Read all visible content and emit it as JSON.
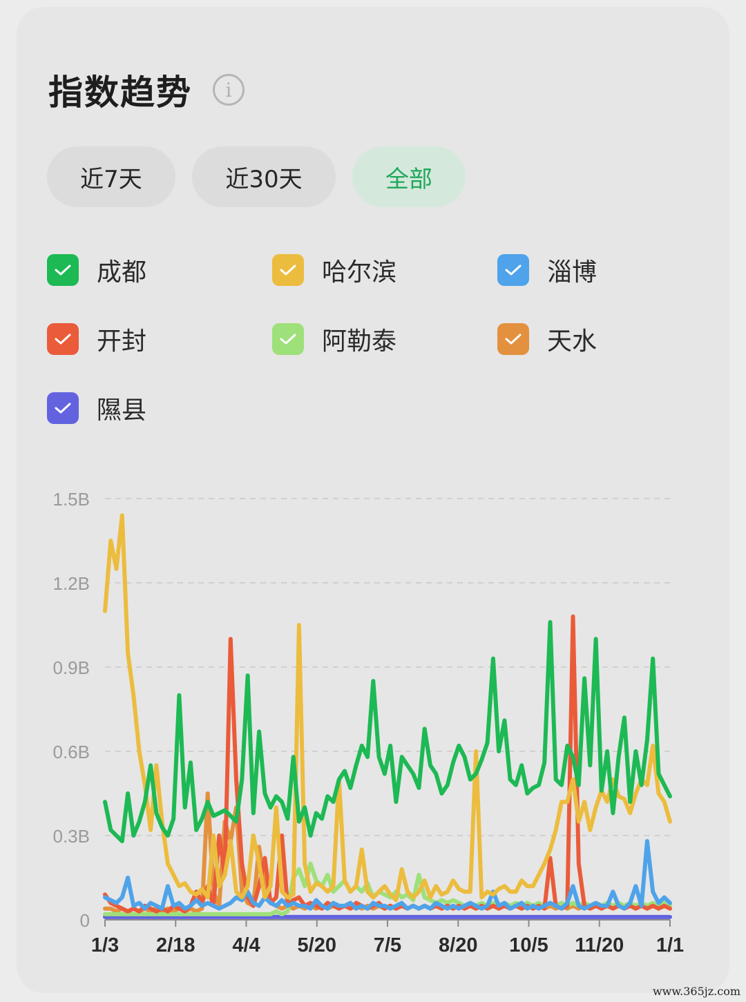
{
  "header": {
    "title": "指数趋势",
    "info_icon": "info-icon"
  },
  "range_tabs": [
    {
      "label": "近7天",
      "active": false
    },
    {
      "label": "近30天",
      "active": false
    },
    {
      "label": "全部",
      "active": true
    }
  ],
  "legend": [
    {
      "label": "成都",
      "color": "#1db954",
      "checked": true
    },
    {
      "label": "哈尔滨",
      "color": "#ecbc3e",
      "checked": true
    },
    {
      "label": "淄博",
      "color": "#4ea3ea",
      "checked": true
    },
    {
      "label": "开封",
      "color": "#ea5b3a",
      "checked": true
    },
    {
      "label": "阿勒泰",
      "color": "#9ee07a",
      "checked": true
    },
    {
      "label": "天水",
      "color": "#e3913f",
      "checked": true
    },
    {
      "label": "隰县",
      "color": "#6363e0",
      "checked": true
    }
  ],
  "chart_data": {
    "type": "line",
    "x_ticks": [
      "1/3",
      "2/18",
      "4/4",
      "5/20",
      "7/5",
      "8/20",
      "10/5",
      "11/20",
      "1/1"
    ],
    "y_ticks": [
      "0",
      "0.3B",
      "0.6B",
      "0.9B",
      "1.2B",
      "1.5B"
    ],
    "ylim": [
      0,
      1.5
    ],
    "y_unit": "B",
    "grid": true,
    "series": [
      {
        "name": "成都",
        "color": "#1db954",
        "values": [
          0.42,
          0.32,
          0.3,
          0.28,
          0.45,
          0.3,
          0.35,
          0.42,
          0.55,
          0.38,
          0.33,
          0.3,
          0.36,
          0.8,
          0.4,
          0.56,
          0.32,
          0.36,
          0.42,
          0.37,
          0.38,
          0.39,
          0.37,
          0.35,
          0.5,
          0.87,
          0.38,
          0.67,
          0.45,
          0.4,
          0.44,
          0.42,
          0.36,
          0.58,
          0.35,
          0.4,
          0.3,
          0.38,
          0.36,
          0.44,
          0.42,
          0.5,
          0.53,
          0.47,
          0.55,
          0.62,
          0.58,
          0.85,
          0.58,
          0.52,
          0.62,
          0.42,
          0.58,
          0.55,
          0.52,
          0.47,
          0.68,
          0.55,
          0.52,
          0.45,
          0.48,
          0.56,
          0.62,
          0.58,
          0.5,
          0.52,
          0.57,
          0.63,
          0.93,
          0.6,
          0.71,
          0.5,
          0.48,
          0.55,
          0.45,
          0.47,
          0.48,
          0.56,
          1.06,
          0.5,
          0.48,
          0.62,
          0.58,
          0.48,
          0.86,
          0.55,
          1.0,
          0.46,
          0.6,
          0.38,
          0.58,
          0.72,
          0.42,
          0.6,
          0.48,
          0.64,
          0.93,
          0.52,
          0.48,
          0.44
        ]
      },
      {
        "name": "哈尔滨",
        "color": "#ecbc3e",
        "values": [
          1.1,
          1.35,
          1.25,
          1.44,
          0.95,
          0.8,
          0.6,
          0.48,
          0.32,
          0.55,
          0.35,
          0.2,
          0.16,
          0.12,
          0.13,
          0.1,
          0.09,
          0.11,
          0.08,
          0.3,
          0.12,
          0.16,
          0.28,
          0.1,
          0.08,
          0.12,
          0.3,
          0.2,
          0.08,
          0.12,
          0.4,
          0.1,
          0.08,
          0.09,
          1.05,
          0.2,
          0.1,
          0.13,
          0.12,
          0.1,
          0.12,
          0.5,
          0.14,
          0.1,
          0.12,
          0.25,
          0.1,
          0.08,
          0.1,
          0.12,
          0.09,
          0.07,
          0.18,
          0.1,
          0.08,
          0.1,
          0.14,
          0.08,
          0.12,
          0.09,
          0.1,
          0.14,
          0.11,
          0.1,
          0.1,
          0.6,
          0.08,
          0.1,
          0.09,
          0.11,
          0.12,
          0.1,
          0.1,
          0.14,
          0.12,
          0.12,
          0.16,
          0.2,
          0.25,
          0.32,
          0.42,
          0.42,
          0.5,
          0.35,
          0.42,
          0.32,
          0.4,
          0.46,
          0.42,
          0.5,
          0.44,
          0.43,
          0.38,
          0.45,
          0.5,
          0.48,
          0.62,
          0.45,
          0.42,
          0.35
        ]
      },
      {
        "name": "淄博",
        "color": "#4ea3ea",
        "values": [
          0.08,
          0.07,
          0.06,
          0.08,
          0.15,
          0.05,
          0.06,
          0.04,
          0.06,
          0.05,
          0.04,
          0.12,
          0.05,
          0.06,
          0.04,
          0.05,
          0.07,
          0.05,
          0.06,
          0.05,
          0.04,
          0.05,
          0.06,
          0.08,
          0.07,
          0.1,
          0.06,
          0.05,
          0.08,
          0.06,
          0.05,
          0.07,
          0.05,
          0.06,
          0.05,
          0.05,
          0.04,
          0.07,
          0.05,
          0.04,
          0.06,
          0.05,
          0.05,
          0.06,
          0.04,
          0.05,
          0.04,
          0.06,
          0.05,
          0.05,
          0.04,
          0.05,
          0.06,
          0.04,
          0.05,
          0.04,
          0.05,
          0.04,
          0.06,
          0.05,
          0.04,
          0.05,
          0.04,
          0.05,
          0.06,
          0.05,
          0.04,
          0.05,
          0.1,
          0.05,
          0.06,
          0.04,
          0.05,
          0.06,
          0.04,
          0.05,
          0.04,
          0.05,
          0.06,
          0.05,
          0.04,
          0.06,
          0.12,
          0.05,
          0.04,
          0.05,
          0.06,
          0.05,
          0.05,
          0.1,
          0.05,
          0.04,
          0.06,
          0.12,
          0.05,
          0.28,
          0.1,
          0.06,
          0.08,
          0.06
        ]
      },
      {
        "name": "开封",
        "color": "#ea5b3a",
        "values": [
          0.09,
          0.06,
          0.05,
          0.04,
          0.03,
          0.04,
          0.03,
          0.05,
          0.04,
          0.03,
          0.04,
          0.03,
          0.05,
          0.04,
          0.03,
          0.05,
          0.1,
          0.06,
          0.12,
          0.05,
          0.3,
          0.16,
          1.0,
          0.5,
          0.2,
          0.08,
          0.05,
          0.12,
          0.22,
          0.06,
          0.08,
          0.3,
          0.05,
          0.07,
          0.08,
          0.05,
          0.06,
          0.05,
          0.04,
          0.06,
          0.05,
          0.04,
          0.05,
          0.04,
          0.06,
          0.05,
          0.04,
          0.05,
          0.06,
          0.04,
          0.05,
          0.04,
          0.05,
          0.04,
          0.05,
          0.04,
          0.05,
          0.04,
          0.05,
          0.04,
          0.05,
          0.04,
          0.05,
          0.04,
          0.05,
          0.04,
          0.05,
          0.04,
          0.05,
          0.04,
          0.05,
          0.04,
          0.05,
          0.04,
          0.05,
          0.04,
          0.05,
          0.04,
          0.22,
          0.05,
          0.04,
          0.05,
          1.08,
          0.2,
          0.05,
          0.04,
          0.05,
          0.04,
          0.05,
          0.04,
          0.05,
          0.04,
          0.05,
          0.04,
          0.05,
          0.04,
          0.05,
          0.04,
          0.05,
          0.04
        ]
      },
      {
        "name": "阿勒泰",
        "color": "#9ee07a",
        "values": [
          0.02,
          0.02,
          0.02,
          0.02,
          0.02,
          0.02,
          0.02,
          0.02,
          0.02,
          0.02,
          0.02,
          0.02,
          0.02,
          0.02,
          0.02,
          0.02,
          0.02,
          0.02,
          0.02,
          0.02,
          0.02,
          0.02,
          0.02,
          0.02,
          0.02,
          0.02,
          0.02,
          0.02,
          0.02,
          0.02,
          0.03,
          0.02,
          0.03,
          0.15,
          0.18,
          0.12,
          0.2,
          0.14,
          0.12,
          0.16,
          0.1,
          0.12,
          0.14,
          0.1,
          0.12,
          0.1,
          0.13,
          0.08,
          0.1,
          0.09,
          0.08,
          0.1,
          0.08,
          0.09,
          0.07,
          0.16,
          0.08,
          0.07,
          0.06,
          0.07,
          0.06,
          0.07,
          0.06,
          0.05,
          0.06,
          0.05,
          0.06,
          0.05,
          0.06,
          0.05,
          0.06,
          0.05,
          0.06,
          0.05,
          0.06,
          0.05,
          0.06,
          0.05,
          0.06,
          0.05,
          0.06,
          0.05,
          0.06,
          0.05,
          0.06,
          0.05,
          0.06,
          0.05,
          0.06,
          0.05,
          0.06,
          0.05,
          0.06,
          0.05,
          0.06,
          0.05,
          0.06,
          0.05,
          0.06,
          0.05
        ]
      },
      {
        "name": "天水",
        "color": "#e3913f",
        "values": [
          0.04,
          0.04,
          0.03,
          0.04,
          0.03,
          0.04,
          0.03,
          0.04,
          0.03,
          0.04,
          0.03,
          0.04,
          0.03,
          0.04,
          0.03,
          0.04,
          0.03,
          0.04,
          0.45,
          0.1,
          0.05,
          0.35,
          0.28,
          0.4,
          0.1,
          0.06,
          0.05,
          0.26,
          0.12,
          0.06,
          0.05,
          0.04,
          0.05,
          0.04,
          0.05,
          0.04,
          0.05,
          0.04,
          0.05,
          0.04,
          0.05,
          0.04,
          0.05,
          0.04,
          0.05,
          0.04,
          0.05,
          0.04,
          0.05,
          0.04,
          0.05,
          0.04,
          0.05,
          0.04,
          0.05,
          0.04,
          0.05,
          0.04,
          0.05,
          0.04,
          0.05,
          0.04,
          0.05,
          0.04,
          0.05,
          0.04,
          0.05,
          0.04,
          0.05,
          0.04,
          0.05,
          0.04,
          0.05,
          0.04,
          0.05,
          0.04,
          0.05,
          0.04,
          0.05,
          0.04,
          0.05,
          0.04,
          0.05,
          0.04,
          0.05,
          0.04,
          0.05,
          0.04,
          0.05,
          0.04,
          0.05,
          0.04,
          0.05,
          0.04,
          0.05,
          0.04,
          0.05,
          0.04,
          0.05,
          0.04
        ]
      },
      {
        "name": "隰县",
        "color": "#6363e0",
        "values": [
          0.01,
          0.01,
          0.01,
          0.01,
          0.01,
          0.01,
          0.01,
          0.01,
          0.01,
          0.01,
          0.01,
          0.01,
          0.01,
          0.01,
          0.01,
          0.01,
          0.01,
          0.01,
          0.01,
          0.01,
          0.01,
          0.01,
          0.01,
          0.01,
          0.01,
          0.01,
          0.01,
          0.01,
          0.01,
          0.01,
          0.01,
          0.01,
          0.01,
          0.01,
          0.01,
          0.01,
          0.01,
          0.01,
          0.01,
          0.01,
          0.01,
          0.01,
          0.01,
          0.01,
          0.01,
          0.01,
          0.01,
          0.01,
          0.01,
          0.01,
          0.01,
          0.01,
          0.01,
          0.01,
          0.01,
          0.01,
          0.01,
          0.01,
          0.01,
          0.01,
          0.01,
          0.01,
          0.01,
          0.01,
          0.01,
          0.01,
          0.01,
          0.01,
          0.01,
          0.01,
          0.01,
          0.01,
          0.01,
          0.01,
          0.01,
          0.01,
          0.01,
          0.01,
          0.01,
          0.01,
          0.01,
          0.01,
          0.01,
          0.01,
          0.01,
          0.01,
          0.01,
          0.01,
          0.01,
          0.01,
          0.01,
          0.01,
          0.01,
          0.01,
          0.01,
          0.01,
          0.01,
          0.01,
          0.01,
          0.01
        ]
      }
    ]
  },
  "watermark": "www.365jz.com"
}
